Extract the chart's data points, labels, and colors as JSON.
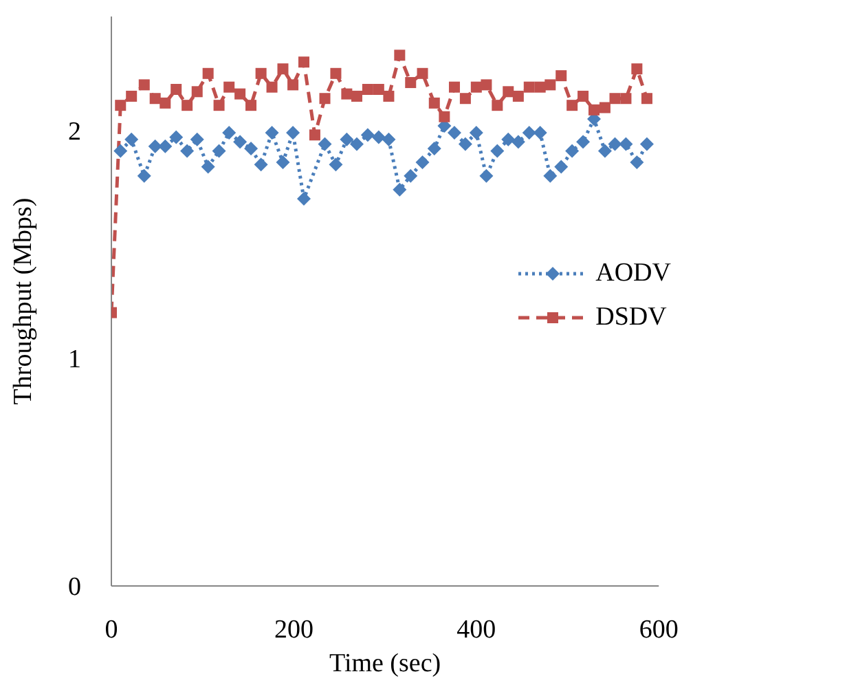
{
  "chart_data": {
    "type": "line",
    "xlabel": "Time (sec)",
    "ylabel": "Throughput (Mbps)",
    "xlim": [
      0,
      600
    ],
    "xticks": [
      0,
      200,
      400,
      600
    ],
    "ylim": [
      0,
      2.5
    ],
    "yticks": [
      0,
      1,
      2
    ],
    "grid": false,
    "legend": "right",
    "x": [
      0,
      10,
      22,
      36,
      48,
      59,
      71,
      83,
      94,
      106,
      118,
      129,
      141,
      153,
      164,
      176,
      188,
      199,
      211,
      223,
      234,
      246,
      258,
      269,
      281,
      293,
      304,
      316,
      328,
      341,
      354,
      365,
      376,
      388,
      400,
      411,
      423,
      435,
      446,
      458,
      470,
      481,
      493,
      505,
      517,
      529,
      541,
      552,
      564,
      576,
      587
    ],
    "series": [
      {
        "name": "AODV",
        "color": "#4a7ebb",
        "marker": "diamond",
        "line_style": "dotted",
        "values": [
          null,
          1.91,
          1.96,
          1.8,
          1.93,
          1.93,
          1.97,
          1.91,
          1.96,
          1.84,
          1.91,
          1.99,
          1.95,
          1.92,
          1.85,
          1.99,
          1.86,
          1.99,
          1.7,
          null,
          1.94,
          1.85,
          1.96,
          1.94,
          1.98,
          1.97,
          1.96,
          1.74,
          1.8,
          1.86,
          1.92,
          2.02,
          1.99,
          1.94,
          1.99,
          1.8,
          1.91,
          1.96,
          1.95,
          1.99,
          1.99,
          1.8,
          1.84,
          1.91,
          1.95,
          2.05,
          1.91,
          1.94,
          1.94,
          1.86,
          1.94
        ]
      },
      {
        "name": "DSDV",
        "color": "#c0504d",
        "marker": "square",
        "line_style": "dashed",
        "values": [
          1.2,
          2.11,
          2.15,
          2.2,
          2.14,
          2.12,
          2.18,
          2.11,
          2.17,
          2.25,
          2.11,
          2.19,
          2.16,
          2.11,
          2.25,
          2.19,
          2.27,
          2.2,
          2.3,
          1.98,
          2.14,
          2.25,
          2.16,
          2.15,
          2.18,
          2.18,
          2.15,
          2.33,
          2.21,
          2.25,
          2.12,
          2.06,
          2.19,
          2.14,
          2.19,
          2.2,
          2.11,
          2.17,
          2.15,
          2.19,
          2.19,
          2.2,
          2.24,
          2.11,
          2.15,
          2.09,
          2.1,
          2.14,
          2.14,
          2.27,
          2.14
        ]
      }
    ]
  }
}
